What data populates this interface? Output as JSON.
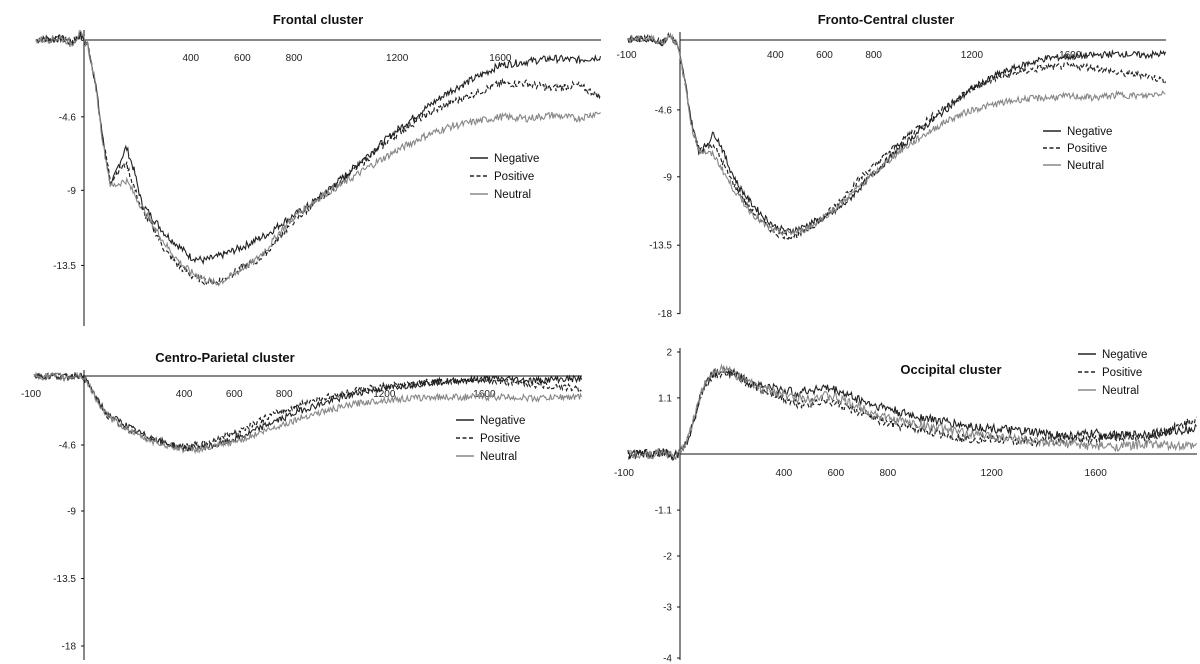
{
  "chart_data": [
    {
      "type": "line",
      "title": "Frontal cluster",
      "xticks": [
        "400",
        "600",
        "800",
        "1200",
        "1600"
      ],
      "xtick_values": [
        400,
        600,
        800,
        1200,
        1600
      ],
      "yticks": [
        "-4.6",
        "-9",
        "-13.5"
      ],
      "ytick_values": [
        -4.6,
        -9,
        -13.5
      ],
      "xlim": [
        -200,
        1990
      ],
      "ylim": [
        -17.8,
        0.6
      ],
      "legend": "right",
      "series": [
        {
          "name": "Negative",
          "style": "solid",
          "color": "#222222",
          "x": [
            -200,
            -100,
            -60,
            -30,
            0,
            30,
            60,
            90,
            120,
            150,
            180,
            210,
            250,
            300,
            350,
            400,
            450,
            500,
            550,
            600,
            650,
            700,
            750,
            800,
            850,
            900,
            1000,
            1100,
            1200,
            1300,
            1400,
            1500,
            1600,
            1700,
            1800,
            1900,
            1990
          ],
          "y": [
            0,
            0.1,
            -0.2,
            0.3,
            -0.3,
            -2.5,
            -6.0,
            -8.8,
            -7.5,
            -6.4,
            -7.8,
            -9.8,
            -10.6,
            -11.6,
            -12.3,
            -13.0,
            -13.2,
            -13.0,
            -12.7,
            -12.4,
            -12.0,
            -11.6,
            -11.0,
            -10.5,
            -10.0,
            -9.4,
            -8.1,
            -6.7,
            -5.4,
            -4.2,
            -3.1,
            -2.3,
            -1.5,
            -1.3,
            -1.1,
            -1.2,
            -1.0
          ]
        },
        {
          "name": "Positive",
          "style": "dashed",
          "color": "#222222",
          "x": [
            -200,
            -100,
            -60,
            -30,
            0,
            30,
            60,
            90,
            120,
            150,
            180,
            210,
            250,
            300,
            350,
            400,
            450,
            500,
            550,
            600,
            650,
            700,
            750,
            800,
            850,
            900,
            1000,
            1100,
            1200,
            1300,
            1400,
            1500,
            1600,
            1700,
            1800,
            1900,
            1990
          ],
          "y": [
            0,
            0.1,
            -0.2,
            0.3,
            -0.3,
            -2.5,
            -6.0,
            -8.5,
            -7.8,
            -7.4,
            -8.8,
            -10.2,
            -11.1,
            -12.6,
            -13.5,
            -14.1,
            -14.4,
            -14.5,
            -14.1,
            -13.6,
            -13.3,
            -12.6,
            -11.7,
            -10.8,
            -10.2,
            -9.5,
            -8.2,
            -6.9,
            -5.6,
            -4.6,
            -3.8,
            -3.2,
            -2.6,
            -2.6,
            -2.9,
            -2.7,
            -3.4
          ]
        },
        {
          "name": "Neutral",
          "style": "solid",
          "color": "#888888",
          "x": [
            -200,
            -100,
            -60,
            -30,
            0,
            30,
            60,
            90,
            120,
            150,
            180,
            210,
            250,
            300,
            350,
            400,
            450,
            500,
            550,
            600,
            650,
            700,
            750,
            800,
            850,
            900,
            1000,
            1100,
            1200,
            1300,
            1400,
            1500,
            1600,
            1700,
            1800,
            1900,
            1990
          ],
          "y": [
            0,
            0.1,
            -0.2,
            0.4,
            -0.3,
            -2.6,
            -6.2,
            -8.8,
            -8.6,
            -8.4,
            -9.2,
            -10.0,
            -11.0,
            -12.2,
            -13.2,
            -13.9,
            -14.3,
            -14.6,
            -14.2,
            -13.7,
            -13.2,
            -12.4,
            -11.4,
            -10.6,
            -10.0,
            -9.4,
            -8.5,
            -7.5,
            -6.6,
            -5.8,
            -5.2,
            -4.9,
            -4.6,
            -4.7,
            -4.5,
            -4.7,
            -4.3
          ]
        }
      ]
    },
    {
      "type": "line",
      "title": "Fronto-Central cluster",
      "xticks": [
        "-100",
        "400",
        "600",
        "800",
        "1200",
        "1600"
      ],
      "xtick_values": [
        -100,
        400,
        600,
        800,
        1200,
        1600
      ],
      "yticks": [
        "-4.6",
        "-9",
        "-13.5",
        "-18"
      ],
      "ytick_values": [
        -4.6,
        -9,
        -13.5,
        -18
      ],
      "xlim": [
        -200,
        1990
      ],
      "ylim": [
        -18,
        0.6
      ],
      "legend": "right",
      "series": [
        {
          "name": "Negative",
          "style": "solid",
          "color": "#222222",
          "x": [
            -200,
            -100,
            -60,
            -30,
            0,
            30,
            60,
            90,
            120,
            150,
            180,
            210,
            250,
            300,
            350,
            400,
            450,
            500,
            550,
            600,
            650,
            700,
            750,
            800,
            850,
            900,
            1000,
            1100,
            1200,
            1300,
            1400,
            1500,
            1600,
            1700,
            1800,
            1900,
            1990
          ],
          "y": [
            0,
            0.1,
            -0.2,
            0.3,
            -0.3,
            -2.5,
            -5.5,
            -7.4,
            -6.9,
            -6.1,
            -7.0,
            -8.3,
            -9.6,
            -10.7,
            -11.6,
            -12.3,
            -12.6,
            -12.4,
            -12.0,
            -11.7,
            -11.2,
            -10.5,
            -9.6,
            -8.8,
            -8.0,
            -7.2,
            -5.8,
            -4.5,
            -3.2,
            -2.3,
            -1.7,
            -1.2,
            -1.1,
            -1.0,
            -0.9,
            -1.0,
            -0.9
          ]
        },
        {
          "name": "Positive",
          "style": "dashed",
          "color": "#222222",
          "x": [
            -200,
            -100,
            -60,
            -30,
            0,
            30,
            60,
            90,
            120,
            150,
            180,
            210,
            250,
            300,
            350,
            400,
            450,
            500,
            550,
            600,
            650,
            700,
            750,
            800,
            850,
            900,
            1000,
            1100,
            1200,
            1300,
            1400,
            1500,
            1600,
            1700,
            1800,
            1900,
            1990
          ],
          "y": [
            0,
            0.1,
            -0.2,
            0.3,
            -0.3,
            -2.6,
            -5.7,
            -7.2,
            -7.0,
            -6.9,
            -7.9,
            -8.9,
            -10.0,
            -11.2,
            -12.0,
            -12.7,
            -12.9,
            -12.8,
            -12.3,
            -11.6,
            -10.8,
            -9.9,
            -9.0,
            -8.3,
            -7.6,
            -6.8,
            -5.5,
            -4.3,
            -3.2,
            -2.5,
            -2.1,
            -1.8,
            -1.7,
            -1.8,
            -2.2,
            -2.3,
            -2.7
          ]
        },
        {
          "name": "Neutral",
          "style": "solid",
          "color": "#888888",
          "x": [
            -200,
            -100,
            -60,
            -30,
            0,
            30,
            60,
            90,
            120,
            150,
            180,
            210,
            250,
            300,
            350,
            400,
            450,
            500,
            550,
            600,
            650,
            700,
            750,
            800,
            850,
            900,
            1000,
            1100,
            1200,
            1300,
            1400,
            1500,
            1600,
            1700,
            1800,
            1900,
            1990
          ],
          "y": [
            0,
            0.1,
            -0.2,
            0.4,
            -0.3,
            -2.6,
            -5.8,
            -7.3,
            -7.4,
            -7.6,
            -8.4,
            -9.3,
            -10.3,
            -11.3,
            -12.1,
            -12.6,
            -12.7,
            -12.6,
            -12.2,
            -11.6,
            -11.0,
            -10.3,
            -9.5,
            -8.8,
            -8.1,
            -7.4,
            -6.3,
            -5.3,
            -4.6,
            -4.2,
            -3.9,
            -3.8,
            -3.7,
            -3.8,
            -3.6,
            -3.7,
            -3.4
          ]
        }
      ]
    },
    {
      "type": "line",
      "title": "Centro-Parietal cluster",
      "xticks": [
        "-100",
        "400",
        "600",
        "800",
        "1200",
        "1600"
      ],
      "xtick_values": [
        -100,
        400,
        600,
        800,
        1200,
        1600
      ],
      "yticks": [
        "-4.6",
        "-9",
        "-13.5",
        "-18"
      ],
      "ytick_values": [
        -4.6,
        -9,
        -13.5,
        -18
      ],
      "xlim": [
        -200,
        1990
      ],
      "ylim": [
        -18,
        0.6
      ],
      "legend": "right",
      "series": [
        {
          "name": "Negative",
          "style": "solid",
          "color": "#222222",
          "x": [
            -200,
            -100,
            -60,
            -30,
            0,
            30,
            60,
            90,
            120,
            150,
            180,
            210,
            250,
            300,
            350,
            400,
            450,
            500,
            550,
            600,
            650,
            700,
            750,
            800,
            850,
            900,
            1000,
            1100,
            1200,
            1300,
            1400,
            1500,
            1600,
            1700,
            1800,
            1900,
            1990
          ],
          "y": [
            0,
            0,
            -0.1,
            0.1,
            -0.1,
            -0.9,
            -1.8,
            -2.5,
            -2.8,
            -3.1,
            -3.4,
            -3.7,
            -4.0,
            -4.3,
            -4.6,
            -4.8,
            -4.8,
            -4.7,
            -4.5,
            -4.2,
            -3.9,
            -3.5,
            -3.1,
            -2.8,
            -2.4,
            -2.1,
            -1.6,
            -1.1,
            -0.8,
            -0.6,
            -0.4,
            -0.3,
            -0.2,
            -0.2,
            -0.3,
            -0.2,
            -0.2
          ]
        },
        {
          "name": "Positive",
          "style": "dashed",
          "color": "#222222",
          "x": [
            -200,
            -100,
            -60,
            -30,
            0,
            30,
            60,
            90,
            120,
            150,
            180,
            210,
            250,
            300,
            350,
            400,
            450,
            500,
            550,
            600,
            650,
            700,
            750,
            800,
            850,
            900,
            1000,
            1100,
            1200,
            1300,
            1400,
            1500,
            1600,
            1700,
            1800,
            1900,
            1990
          ],
          "y": [
            0,
            0,
            -0.1,
            0.1,
            -0.1,
            -0.9,
            -1.9,
            -2.6,
            -2.9,
            -3.3,
            -3.6,
            -3.8,
            -4.1,
            -4.4,
            -4.6,
            -4.7,
            -4.6,
            -4.4,
            -4.1,
            -3.8,
            -3.4,
            -3.0,
            -2.6,
            -2.3,
            -2.0,
            -1.7,
            -1.3,
            -0.9,
            -0.7,
            -0.5,
            -0.4,
            -0.3,
            -0.3,
            -0.4,
            -0.6,
            -0.7,
            -0.9
          ]
        },
        {
          "name": "Neutral",
          "style": "solid",
          "color": "#888888",
          "x": [
            -200,
            -100,
            -60,
            -30,
            0,
            30,
            60,
            90,
            120,
            150,
            180,
            210,
            250,
            300,
            350,
            400,
            450,
            500,
            550,
            600,
            650,
            700,
            750,
            800,
            850,
            900,
            1000,
            1100,
            1200,
            1300,
            1400,
            1500,
            1600,
            1700,
            1800,
            1900,
            1990
          ],
          "y": [
            0,
            0,
            -0.1,
            0.1,
            -0.1,
            -0.9,
            -1.9,
            -2.6,
            -3.0,
            -3.3,
            -3.6,
            -3.9,
            -4.2,
            -4.5,
            -4.7,
            -4.9,
            -4.9,
            -4.8,
            -4.6,
            -4.4,
            -4.1,
            -3.8,
            -3.5,
            -3.2,
            -2.9,
            -2.6,
            -2.2,
            -1.8,
            -1.6,
            -1.5,
            -1.4,
            -1.4,
            -1.4,
            -1.4,
            -1.5,
            -1.4,
            -1.4
          ]
        }
      ]
    },
    {
      "type": "line",
      "title": "Occipital cluster",
      "xticks": [
        "-100",
        "400",
        "600",
        "800",
        "1200",
        "1600"
      ],
      "xtick_values": [
        -100,
        400,
        600,
        800,
        1200,
        1600
      ],
      "yticks": [
        "2",
        "1.1",
        "-1.1",
        "-2",
        "-3",
        "-4"
      ],
      "ytick_values": [
        2,
        1.1,
        -1.1,
        -2,
        -3,
        -4
      ],
      "xlim": [
        -200,
        1990
      ],
      "ylim": [
        -4,
        2
      ],
      "legend": "top-right",
      "series": [
        {
          "name": "Negative",
          "style": "solid",
          "color": "#222222",
          "x": [
            -200,
            -100,
            -60,
            -30,
            0,
            40,
            80,
            120,
            160,
            200,
            250,
            300,
            350,
            400,
            450,
            500,
            550,
            600,
            650,
            700,
            750,
            800,
            850,
            900,
            1000,
            1100,
            1200,
            1300,
            1400,
            1500,
            1600,
            1700,
            1800,
            1900,
            1990
          ],
          "y": [
            0,
            0,
            0.05,
            -0.05,
            0,
            0.4,
            1.2,
            1.55,
            1.65,
            1.6,
            1.45,
            1.35,
            1.3,
            1.25,
            1.2,
            1.25,
            1.3,
            1.25,
            1.15,
            1.05,
            0.95,
            0.9,
            0.8,
            0.75,
            0.65,
            0.55,
            0.5,
            0.45,
            0.4,
            0.35,
            0.4,
            0.35,
            0.4,
            0.45,
            0.5
          ]
        },
        {
          "name": "Positive",
          "style": "dashed",
          "color": "#222222",
          "x": [
            -200,
            -100,
            -60,
            -30,
            0,
            40,
            80,
            120,
            160,
            200,
            250,
            300,
            350,
            400,
            450,
            500,
            550,
            600,
            650,
            700,
            750,
            800,
            850,
            900,
            1000,
            1100,
            1200,
            1300,
            1400,
            1500,
            1600,
            1700,
            1800,
            1900,
            1990
          ],
          "y": [
            0,
            0,
            0.05,
            -0.05,
            0,
            0.4,
            1.15,
            1.5,
            1.6,
            1.55,
            1.4,
            1.3,
            1.2,
            1.1,
            1.0,
            1.0,
            1.05,
            1.0,
            0.9,
            0.8,
            0.7,
            0.6,
            0.55,
            0.5,
            0.4,
            0.3,
            0.3,
            0.25,
            0.25,
            0.3,
            0.3,
            0.35,
            0.3,
            0.5,
            0.7
          ]
        },
        {
          "name": "Neutral",
          "style": "solid",
          "color": "#888888",
          "x": [
            -200,
            -100,
            -60,
            -30,
            0,
            40,
            80,
            120,
            160,
            200,
            250,
            300,
            350,
            400,
            450,
            500,
            550,
            600,
            650,
            700,
            750,
            800,
            850,
            900,
            1000,
            1100,
            1200,
            1300,
            1400,
            1500,
            1600,
            1700,
            1800,
            1900,
            1990
          ],
          "y": [
            0,
            0,
            0.05,
            -0.05,
            0,
            0.45,
            1.2,
            1.6,
            1.7,
            1.6,
            1.45,
            1.3,
            1.25,
            1.15,
            1.1,
            1.1,
            1.15,
            1.1,
            1.0,
            0.9,
            0.8,
            0.7,
            0.65,
            0.6,
            0.5,
            0.4,
            0.35,
            0.3,
            0.2,
            0.2,
            0.15,
            0.15,
            0.2,
            0.15,
            0.15
          ]
        }
      ]
    }
  ]
}
